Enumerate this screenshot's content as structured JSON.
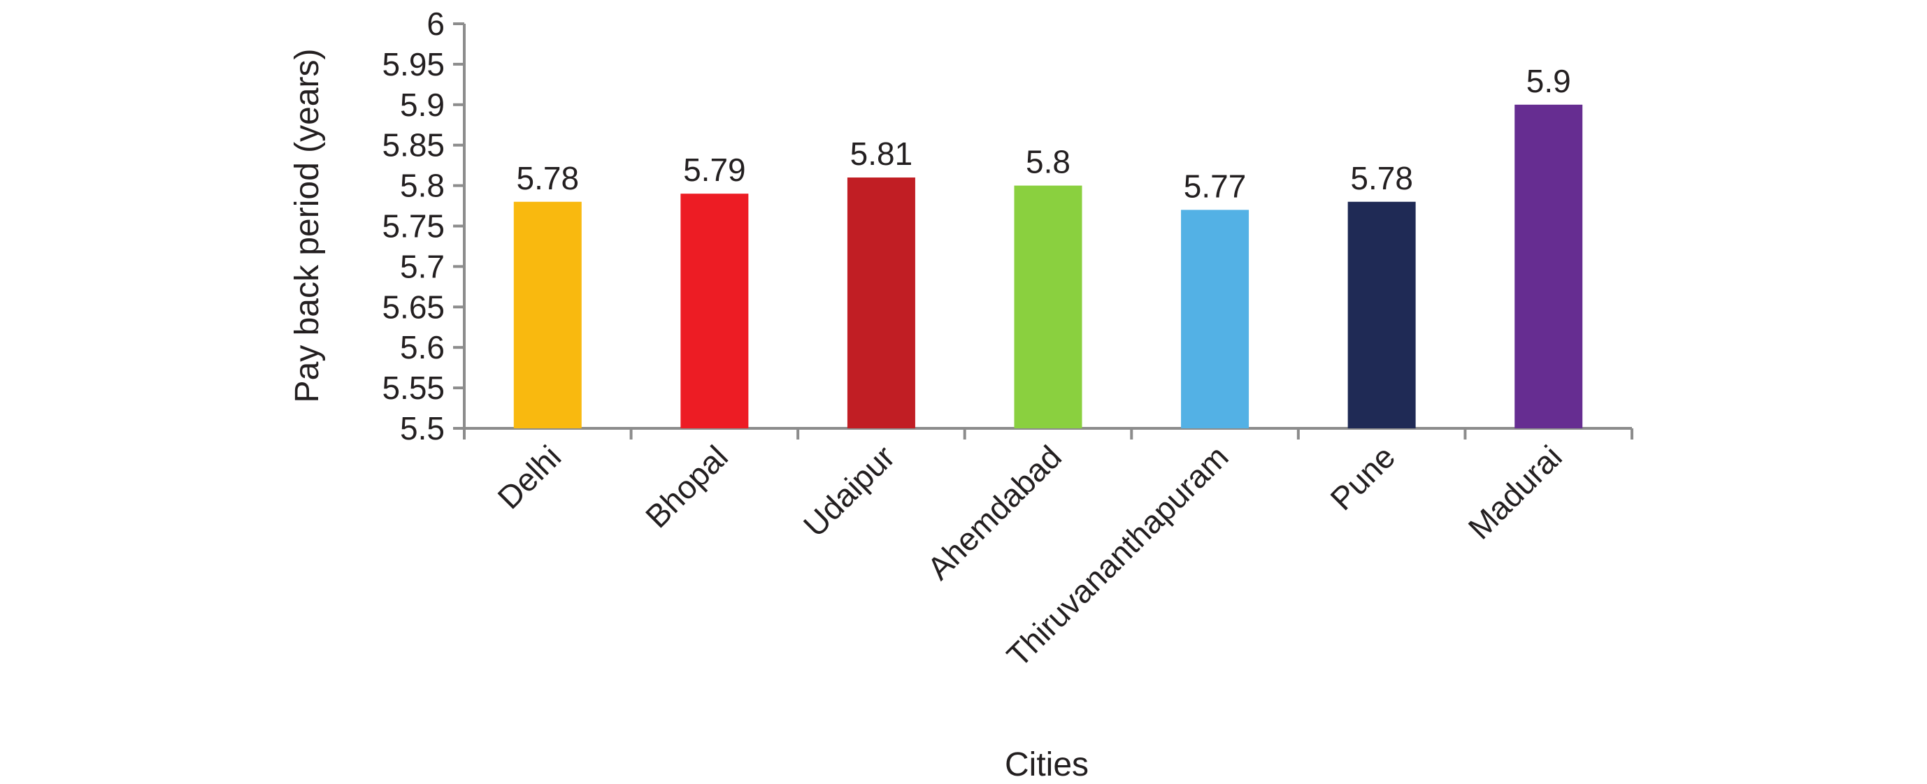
{
  "chart_data": {
    "type": "bar",
    "title": "",
    "xlabel": "Cities",
    "ylabel": "Pay back period (years)",
    "ylim": [
      5.5,
      6
    ],
    "yticks": [
      "5.5",
      "5.55",
      "5.6",
      "5.65",
      "5.7",
      "5.75",
      "5.8",
      "5.85",
      "5.9",
      "5.95",
      "6"
    ],
    "categories": [
      "Delhi",
      "Bhopal",
      "Udaipur",
      "Ahemdabad",
      "Thiruvananthapuram",
      "Pune",
      "Madurai"
    ],
    "values": [
      5.78,
      5.79,
      5.81,
      5.8,
      5.77,
      5.78,
      5.9
    ],
    "data_labels": [
      "5.78",
      "5.79",
      "5.81",
      "5.8",
      "5.77",
      "5.78",
      "5.9"
    ],
    "colors": [
      "#F9B90F",
      "#ED1C24",
      "#C11E24",
      "#8AD03F",
      "#53B1E5",
      "#1F2A55",
      "#662D91"
    ],
    "grid": false,
    "legend": "none"
  }
}
